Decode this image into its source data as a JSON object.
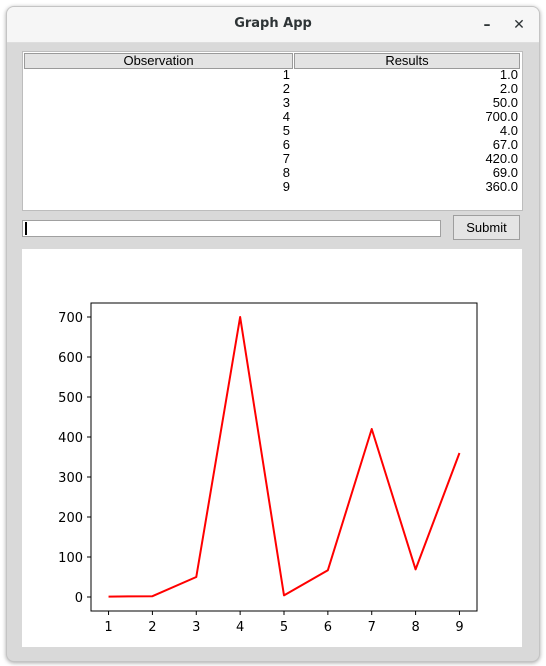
{
  "window": {
    "title": "Graph App",
    "minimize_glyph": "–",
    "close_glyph": "✕"
  },
  "table": {
    "columns": [
      "Observation",
      "Results"
    ],
    "rows": [
      [
        "1",
        "1.0"
      ],
      [
        "2",
        "2.0"
      ],
      [
        "3",
        "50.0"
      ],
      [
        "4",
        "700.0"
      ],
      [
        "5",
        "4.0"
      ],
      [
        "6",
        "67.0"
      ],
      [
        "7",
        "420.0"
      ],
      [
        "8",
        "69.0"
      ],
      [
        "9",
        "360.0"
      ]
    ]
  },
  "input": {
    "value": ""
  },
  "submit": {
    "label": "Submit"
  },
  "chart_data": {
    "type": "line",
    "x": [
      1,
      2,
      3,
      4,
      5,
      6,
      7,
      8,
      9
    ],
    "series": [
      {
        "values": [
          1.0,
          2.0,
          50.0,
          700.0,
          4.0,
          67.0,
          420.0,
          69.0,
          360.0
        ],
        "color": "#ff0000"
      }
    ],
    "xticks": [
      1,
      2,
      3,
      4,
      5,
      6,
      7,
      8,
      9
    ],
    "yticks": [
      0,
      100,
      200,
      300,
      400,
      500,
      600,
      700
    ],
    "xlim": [
      0.6,
      9.4
    ],
    "ylim": [
      -35,
      735
    ],
    "title": "",
    "xlabel": "",
    "ylabel": "",
    "grid": false
  }
}
